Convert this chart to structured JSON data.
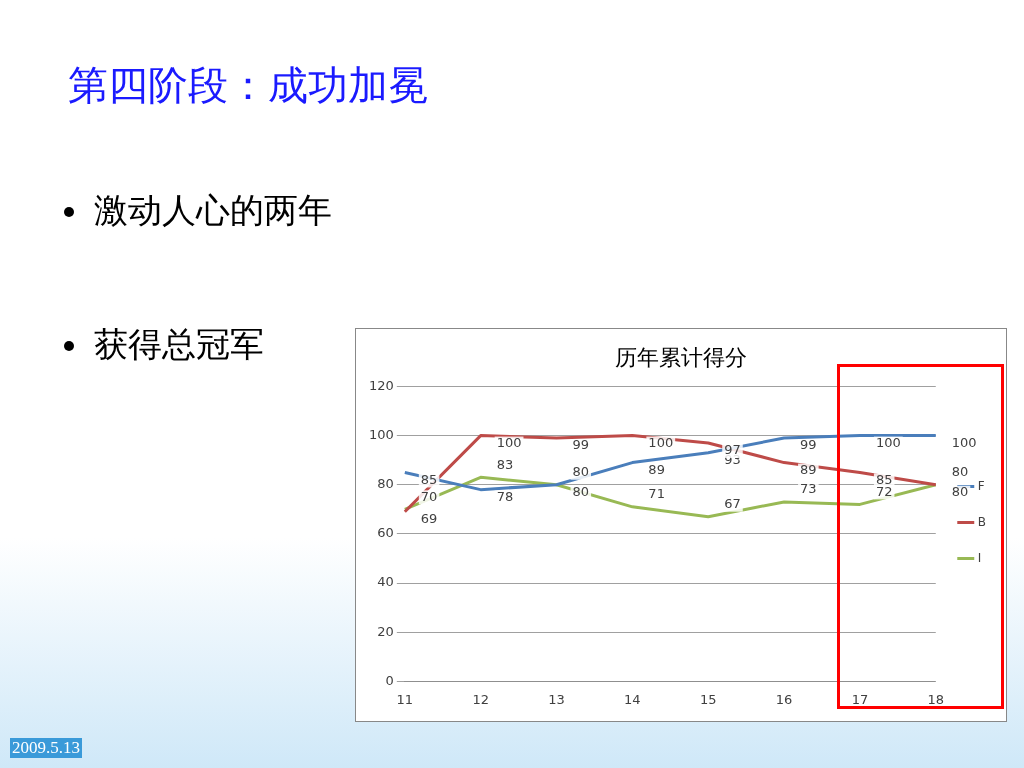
{
  "chart_data": {
    "type": "line",
    "title": "历年累计得分",
    "annotations": [
      "第四阶段：成功加冕",
      "激动人心的两年",
      "获得总冠军",
      "2009.5.13"
    ],
    "categories": [
      "11",
      "12",
      "13",
      "14",
      "15",
      "16",
      "17",
      "18"
    ],
    "series": [
      {
        "name": "F",
        "color": "#4a7ebb",
        "values": [
          85,
          78,
          80,
          89,
          93,
          99,
          100,
          100
        ]
      },
      {
        "name": "B",
        "color": "#be4b48",
        "values": [
          69,
          100,
          99,
          100,
          97,
          89,
          85,
          80
        ]
      },
      {
        "name": "I",
        "color": "#98b954",
        "values": [
          70,
          83,
          80,
          71,
          67,
          73,
          72,
          80
        ]
      }
    ],
    "ylim": [
      0,
      120
    ],
    "yticks": [
      0,
      20,
      40,
      60,
      80,
      100,
      120
    ],
    "grid": "y",
    "legend": "right",
    "marker": "none",
    "line_style": "solid",
    "data_labels": true
  }
}
